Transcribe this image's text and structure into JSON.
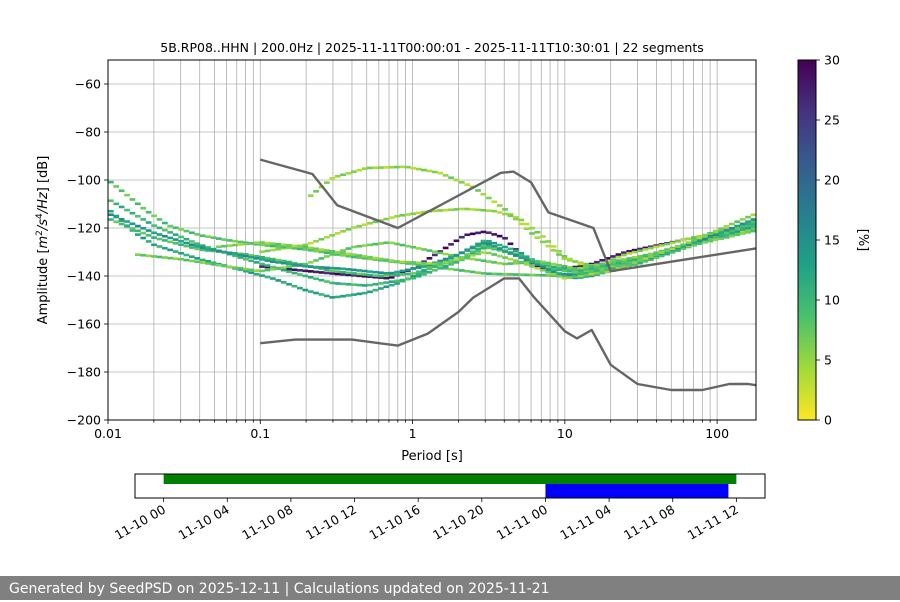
{
  "chart_data": [
    {
      "type": "heatmap",
      "title": "5B.RP08..HHN | 200.0Hz | 2025-11-11T00:00:01 - 2025-11-11T10:30:01 | 22 segments",
      "xlabel": "Period [s]",
      "ylabel_parts": [
        "Amplitude [",
        "m",
        "2",
        "/s",
        "4",
        "/Hz",
        "] [dB]"
      ],
      "xscale": "log",
      "xlim": [
        0.01,
        180
      ],
      "ylim": [
        -200,
        -50
      ],
      "x_ticks": [
        {
          "value": 0.01,
          "label": "0.01"
        },
        {
          "value": 0.1,
          "label": "0.1"
        },
        {
          "value": 1,
          "label": "1"
        },
        {
          "value": 10,
          "label": "10"
        },
        {
          "value": 100,
          "label": "100"
        }
      ],
      "y_ticks": [
        {
          "value": -60,
          "label": "−60"
        },
        {
          "value": -80,
          "label": "−80"
        },
        {
          "value": -100,
          "label": "−100"
        },
        {
          "value": -120,
          "label": "−120"
        },
        {
          "value": -140,
          "label": "−140"
        },
        {
          "value": -160,
          "label": "−160"
        },
        {
          "value": -180,
          "label": "−180"
        },
        {
          "value": -200,
          "label": "−200"
        }
      ],
      "grid": true,
      "colorbar": {
        "label": "[%]",
        "range": [
          0,
          30
        ],
        "ticks": [
          {
            "value": 0,
            "label": "0"
          },
          {
            "value": 5,
            "label": "5"
          },
          {
            "value": 10,
            "label": "10"
          },
          {
            "value": 15,
            "label": "15"
          },
          {
            "value": 20,
            "label": "20"
          },
          {
            "value": 25,
            "label": "25"
          },
          {
            "value": 30,
            "label": "30"
          }
        ],
        "colormap": "viridis_r",
        "stops": [
          "#fde725",
          "#a0da39",
          "#4ac16d",
          "#1fa187",
          "#277f8e",
          "#365c8d",
          "#46327e",
          "#440154"
        ]
      },
      "reference_curves": [
        {
          "name": "noise-model-high",
          "points": [
            [
              0.1,
              -91.5
            ],
            [
              0.22,
              -97.5
            ],
            [
              0.32,
              -110.5
            ],
            [
              0.8,
              -120
            ],
            [
              3.8,
              -97
            ],
            [
              4.6,
              -96.5
            ],
            [
              6,
              -101
            ],
            [
              7.8,
              -113.5
            ],
            [
              15.4,
              -120
            ],
            [
              20,
              -138
            ],
            [
              180,
              -128.5
            ]
          ]
        },
        {
          "name": "noise-model-low",
          "points": [
            [
              0.1,
              -168
            ],
            [
              0.17,
              -166.5
            ],
            [
              0.4,
              -166.5
            ],
            [
              0.8,
              -169
            ],
            [
              1.26,
              -164
            ],
            [
              2.0,
              -155
            ],
            [
              2.5,
              -149
            ],
            [
              4.0,
              -141
            ],
            [
              5.0,
              -141
            ],
            [
              6.3,
              -149
            ],
            [
              10,
              -163
            ],
            [
              12,
              -166
            ],
            [
              15,
              -162.5
            ],
            [
              20,
              -177
            ],
            [
              30,
              -185
            ],
            [
              50,
              -187.5
            ],
            [
              80,
              -187.5
            ],
            [
              120,
              -185
            ],
            [
              160,
              -185
            ],
            [
              180,
              -185.5
            ]
          ]
        }
      ],
      "density_traces": [
        {
          "name": "dominant-trace",
          "percent": 28,
          "points": [
            [
              0.1,
              -136
            ],
            [
              0.3,
              -139
            ],
            [
              0.7,
              -141
            ],
            [
              1.0,
              -137
            ],
            [
              1.5,
              -130
            ],
            [
              2.2,
              -123
            ],
            [
              3.0,
              -121.5
            ],
            [
              4.0,
              -124
            ],
            [
              5.5,
              -133
            ],
            [
              7,
              -137
            ],
            [
              10,
              -137
            ],
            [
              15,
              -135
            ],
            [
              25,
              -130
            ],
            [
              50,
              -126
            ],
            [
              100,
              -122
            ],
            [
              180,
              -117
            ]
          ]
        },
        {
          "name": "trace-upper-hump",
          "percent": 5,
          "points": [
            [
              0.2,
              -108
            ],
            [
              0.3,
              -99
            ],
            [
              0.5,
              -95
            ],
            [
              0.9,
              -94.5
            ],
            [
              1.5,
              -97
            ],
            [
              2.5,
              -103
            ],
            [
              4,
              -112
            ],
            [
              6,
              -122
            ],
            [
              10,
              -133
            ],
            [
              16,
              -136
            ],
            [
              25,
              -131
            ],
            [
              60,
              -125
            ],
            [
              180,
              -118
            ]
          ]
        },
        {
          "name": "trace-mid-rise",
          "percent": 5,
          "points": [
            [
              0.1,
              -130
            ],
            [
              0.2,
              -127
            ],
            [
              0.4,
              -120
            ],
            [
              0.8,
              -115
            ],
            [
              1.3,
              -113
            ],
            [
              2.2,
              -112
            ],
            [
              3.5,
              -113
            ],
            [
              5,
              -116
            ],
            [
              7,
              -123
            ],
            [
              10,
              -132
            ],
            [
              16,
              -138
            ],
            [
              30,
              -133
            ],
            [
              80,
              -126
            ],
            [
              180,
              -120
            ]
          ]
        },
        {
          "name": "trace-upper-left",
          "percent": 8,
          "points": [
            [
              0.01,
              -100
            ],
            [
              0.012,
              -104
            ],
            [
              0.018,
              -113
            ],
            [
              0.025,
              -119
            ],
            [
              0.04,
              -123
            ],
            [
              0.06,
              -125
            ],
            [
              0.1,
              -127
            ],
            [
              0.2,
              -129
            ],
            [
              0.4,
              -132
            ],
            [
              1,
              -135
            ],
            [
              3,
              -139
            ],
            [
              10,
              -140
            ],
            [
              20,
              -136
            ],
            [
              60,
              -128
            ],
            [
              180,
              -121
            ]
          ]
        },
        {
          "name": "trace-lower-left",
          "percent": 12,
          "points": [
            [
              0.01,
              -112
            ],
            [
              0.015,
              -122
            ],
            [
              0.02,
              -127
            ],
            [
              0.04,
              -133
            ],
            [
              0.07,
              -137
            ],
            [
              0.12,
              -141
            ],
            [
              0.2,
              -146
            ],
            [
              0.3,
              -149
            ],
            [
              0.5,
              -147
            ],
            [
              0.8,
              -143
            ],
            [
              1.2,
              -138
            ],
            [
              2,
              -131
            ],
            [
              3,
              -125
            ],
            [
              5,
              -130
            ],
            [
              8,
              -138
            ],
            [
              12,
              -141
            ],
            [
              20,
              -138
            ],
            [
              50,
              -130
            ],
            [
              180,
              -119
            ]
          ]
        },
        {
          "name": "trace-band-a",
          "percent": 10,
          "points": [
            [
              0.01,
              -108
            ],
            [
              0.02,
              -119
            ],
            [
              0.04,
              -127
            ],
            [
              0.08,
              -133
            ],
            [
              0.15,
              -138
            ],
            [
              0.3,
              -143
            ],
            [
              0.5,
              -144
            ],
            [
              1,
              -141
            ],
            [
              2,
              -134
            ],
            [
              3,
              -128
            ],
            [
              5,
              -131
            ],
            [
              8,
              -136
            ],
            [
              12,
              -138
            ],
            [
              25,
              -134
            ],
            [
              60,
              -127
            ],
            [
              180,
              -118
            ]
          ]
        },
        {
          "name": "trace-band-b",
          "percent": 9,
          "points": [
            [
              0.01,
              -116
            ],
            [
              0.02,
              -124
            ],
            [
              0.04,
              -129
            ],
            [
              0.08,
              -131
            ],
            [
              0.15,
              -134
            ],
            [
              0.3,
              -138
            ],
            [
              0.6,
              -140
            ],
            [
              1,
              -139
            ],
            [
              2,
              -133
            ],
            [
              3,
              -127
            ],
            [
              5,
              -132
            ],
            [
              8,
              -137
            ],
            [
              14,
              -139
            ],
            [
              30,
              -135
            ],
            [
              80,
              -126
            ],
            [
              180,
              -117
            ]
          ]
        },
        {
          "name": "trace-band-c",
          "percent": 7,
          "points": [
            [
              0.015,
              -131
            ],
            [
              0.03,
              -133
            ],
            [
              0.06,
              -136
            ],
            [
              0.1,
              -138
            ],
            [
              0.2,
              -135
            ],
            [
              0.4,
              -128
            ],
            [
              0.7,
              -126
            ],
            [
              1.2,
              -129
            ],
            [
              2,
              -132
            ],
            [
              4,
              -135
            ],
            [
              7,
              -134
            ],
            [
              12,
              -137
            ],
            [
              25,
              -133
            ],
            [
              60,
              -128
            ],
            [
              180,
              -121
            ]
          ]
        },
        {
          "name": "trace-band-d",
          "percent": 14,
          "points": [
            [
              0.01,
              -114
            ],
            [
              0.02,
              -122
            ],
            [
              0.04,
              -128
            ],
            [
              0.07,
              -131
            ],
            [
              0.12,
              -134
            ],
            [
              0.2,
              -136
            ],
            [
              0.35,
              -137
            ],
            [
              0.7,
              -139
            ],
            [
              1.2,
              -136
            ],
            [
              2,
              -131
            ],
            [
              3,
              -126
            ],
            [
              5,
              -132
            ],
            [
              9,
              -139
            ],
            [
              15,
              -140
            ],
            [
              30,
              -134
            ],
            [
              80,
              -125
            ],
            [
              180,
              -116
            ]
          ]
        },
        {
          "name": "trace-band-e",
          "percent": 6,
          "points": [
            [
              0.05,
              -128
            ],
            [
              0.1,
              -126
            ],
            [
              0.2,
              -128
            ],
            [
              0.4,
              -131
            ],
            [
              0.8,
              -134
            ],
            [
              1.5,
              -135
            ],
            [
              3,
              -130
            ],
            [
              5,
              -134
            ],
            [
              10,
              -141
            ],
            [
              20,
              -138
            ],
            [
              60,
              -127
            ],
            [
              180,
              -114
            ]
          ]
        }
      ]
    },
    {
      "type": "timeline",
      "x_ticks": [
        {
          "pos": 0,
          "label": "11-10 00"
        },
        {
          "pos": 4,
          "label": "11-10 04"
        },
        {
          "pos": 8,
          "label": "11-10 08"
        },
        {
          "pos": 12,
          "label": "11-10 12"
        },
        {
          "pos": 16,
          "label": "11-10 16"
        },
        {
          "pos": 20,
          "label": "11-10 20"
        },
        {
          "pos": 24,
          "label": "11-11 00"
        },
        {
          "pos": 28,
          "label": "11-11 04"
        },
        {
          "pos": 32,
          "label": "11-11 08"
        },
        {
          "pos": 36,
          "label": "11-11 12"
        }
      ],
      "xlim": [
        -1.8,
        37.8
      ],
      "bars": [
        {
          "name": "available-data",
          "start": 0.0,
          "end": 36.0,
          "color": "#008000",
          "row": "top"
        },
        {
          "name": "selected-segments",
          "start": 24.0,
          "end": 35.5,
          "color": "#0000ff",
          "row": "bottom"
        }
      ]
    }
  ],
  "footer": {
    "text": "Generated by SeedPSD on 2025-12-11 | Calculations updated on 2025-11-21"
  }
}
